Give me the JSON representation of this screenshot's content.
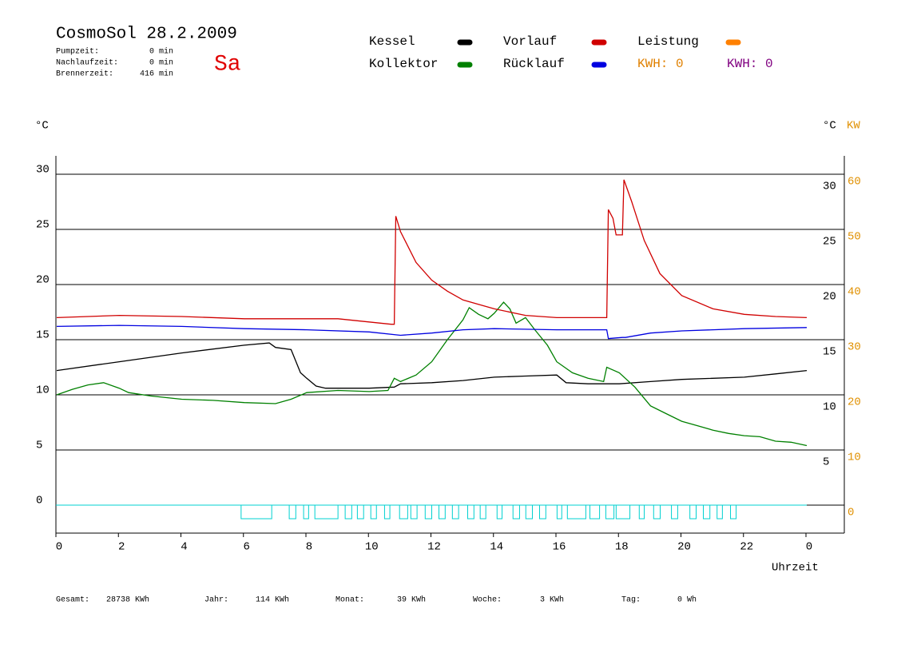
{
  "chart_data": {
    "type": "line",
    "title": "CosmoSol 28.2.2009",
    "day": "Sa",
    "header_stats": [
      {
        "label": "Pumpzeit:",
        "value": "0 min"
      },
      {
        "label": "Nachlaufzeit:",
        "value": "0 min"
      },
      {
        "label": "Brennerzeit:",
        "value": "416 min"
      }
    ],
    "y_unit": "°C",
    "y2_unit": "°C",
    "y2_unit_kw": "KW",
    "xlabel": "Uhrzeit",
    "xlim": [
      0,
      24
    ],
    "xticks": [
      0,
      2,
      4,
      6,
      8,
      10,
      12,
      14,
      16,
      18,
      20,
      22,
      {
        "value": 24,
        "label": "0"
      }
    ],
    "ylim": [
      -2.5,
      32
    ],
    "yticks": [
      0,
      5,
      10,
      15,
      20,
      25,
      30
    ],
    "y3ticks": [
      5,
      10,
      15,
      20,
      25,
      30
    ],
    "y2lim": [
      -5,
      64
    ],
    "y2ticks": [
      0,
      10,
      20,
      30,
      40,
      50,
      60
    ],
    "grid": true,
    "series": [
      {
        "name": "Kessel",
        "color": "#000000",
        "x": [
          0,
          2,
          4,
          6,
          6.8,
          7,
          7.5,
          7.8,
          8,
          8.3,
          8.6,
          9,
          10,
          10.8,
          11,
          12,
          13,
          14,
          15,
          16,
          16.3,
          17,
          18,
          19,
          20,
          22,
          23,
          24
        ],
        "values": [
          12.2,
          13.0,
          13.8,
          14.5,
          14.7,
          14.3,
          14.1,
          12.0,
          11.5,
          10.8,
          10.6,
          10.6,
          10.6,
          10.7,
          11.0,
          11.1,
          11.3,
          11.6,
          11.7,
          11.8,
          11.1,
          11.0,
          11.0,
          11.2,
          11.4,
          11.6,
          11.9,
          12.2
        ]
      },
      {
        "name": "Kollektor",
        "color": "#008000",
        "x": [
          0,
          0.5,
          1,
          1.5,
          2,
          2.3,
          3,
          4,
          5,
          6,
          7,
          7.5,
          8,
          9,
          10,
          10.6,
          10.8,
          11,
          11.5,
          12,
          12.5,
          13,
          13.2,
          13.5,
          13.8,
          14,
          14.3,
          14.5,
          14.7,
          15,
          15.3,
          15.7,
          16,
          16.5,
          17,
          17.5,
          17.6,
          18,
          18.5,
          19,
          19.5,
          20,
          20.5,
          21,
          21.5,
          22,
          22.5,
          23,
          23.5,
          24
        ],
        "values": [
          10.0,
          10.5,
          10.9,
          11.1,
          10.6,
          10.2,
          9.9,
          9.6,
          9.5,
          9.3,
          9.2,
          9.6,
          10.2,
          10.4,
          10.3,
          10.4,
          11.5,
          11.2,
          11.8,
          13.0,
          15.0,
          16.8,
          17.9,
          17.3,
          16.9,
          17.4,
          18.4,
          17.8,
          16.5,
          17.0,
          15.9,
          14.5,
          13.0,
          12.0,
          11.5,
          11.2,
          12.5,
          12.0,
          10.7,
          9.0,
          8.3,
          7.6,
          7.2,
          6.8,
          6.5,
          6.3,
          6.2,
          5.8,
          5.7,
          5.4
        ]
      },
      {
        "name": "Vorlauf",
        "color": "#d00000",
        "x": [
          0,
          2,
          4,
          6,
          8,
          9,
          10.7,
          10.8,
          10.85,
          11,
          11.5,
          12,
          12.5,
          13,
          14,
          15,
          16,
          17,
          17.6,
          17.65,
          17.8,
          17.9,
          18.1,
          18.15,
          18.4,
          18.8,
          19.3,
          20,
          21,
          22,
          23,
          24
        ],
        "values": [
          17.0,
          17.2,
          17.1,
          16.9,
          16.9,
          16.9,
          16.4,
          16.4,
          26.2,
          24.8,
          22.0,
          20.4,
          19.4,
          18.6,
          17.8,
          17.2,
          17.0,
          17.0,
          17.0,
          26.8,
          26.0,
          24.5,
          24.5,
          29.5,
          27.5,
          24.0,
          21.0,
          19.0,
          17.8,
          17.3,
          17.1,
          17.0
        ]
      },
      {
        "name": "Rücklauf",
        "color": "#0000e0",
        "x": [
          0,
          2,
          4,
          6,
          8,
          10,
          11,
          12,
          13,
          14,
          16,
          17.6,
          17.65,
          18.1,
          18.2,
          19,
          20,
          22,
          24
        ],
        "values": [
          16.2,
          16.3,
          16.2,
          16.0,
          15.9,
          15.7,
          15.4,
          15.6,
          15.9,
          16.0,
          15.9,
          15.9,
          15.1,
          15.2,
          15.2,
          15.6,
          15.8,
          16.0,
          16.1
        ]
      },
      {
        "name": "Leistung",
        "color": "#ff8000",
        "axis": "y2",
        "x": [],
        "values": []
      }
    ],
    "kwh_labels": [
      {
        "text": "KWH: 0",
        "color": "#e08000"
      },
      {
        "text": "KWH: 0",
        "color": "#800080"
      }
    ],
    "state_color": "#00d0d0",
    "state_blocks": [
      [
        5.9,
        6.88
      ],
      [
        7.44,
        7.65
      ],
      [
        7.9,
        8.06
      ],
      [
        8.26,
        9.0
      ],
      [
        9.23,
        9.44
      ],
      [
        9.62,
        9.82
      ],
      [
        10.05,
        10.23
      ],
      [
        10.49,
        10.66
      ],
      [
        10.97,
        11.23
      ],
      [
        11.33,
        11.53
      ],
      [
        11.79,
        12.0
      ],
      [
        12.23,
        12.43
      ],
      [
        12.66,
        12.86
      ],
      [
        13.15,
        13.35
      ],
      [
        13.55,
        13.73
      ],
      [
        14.09,
        14.25
      ],
      [
        14.6,
        14.81
      ],
      [
        15.01,
        15.22
      ],
      [
        15.45,
        15.65
      ],
      [
        16.01,
        16.16
      ],
      [
        16.34,
        16.93
      ],
      [
        17.06,
        17.37
      ],
      [
        17.57,
        17.83
      ],
      [
        17.9,
        18.34
      ],
      [
        18.64,
        18.8
      ],
      [
        19.1,
        19.31
      ],
      [
        19.67,
        19.87
      ],
      [
        20.26,
        20.46
      ],
      [
        20.69,
        20.9
      ],
      [
        21.13,
        21.3
      ],
      [
        21.56,
        21.74
      ]
    ],
    "totals": [
      {
        "label": "Gesamt:",
        "value": "28738 KWh"
      },
      {
        "label": "Jahr:",
        "value": "114 KWh"
      },
      {
        "label": "Monat:",
        "value": "39 KWh"
      },
      {
        "label": "Woche:",
        "value": "3 KWh"
      },
      {
        "label": "Tag:",
        "value": "0 Wh"
      }
    ]
  }
}
